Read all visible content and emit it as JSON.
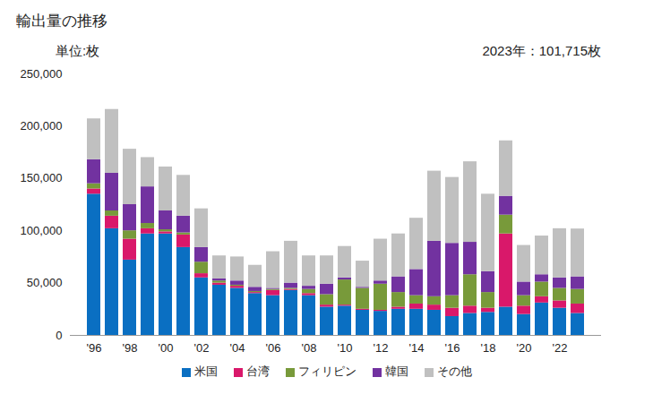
{
  "chart_data": {
    "type": "bar",
    "title": "輸出量の推移",
    "subtitle": "単位:枚",
    "annotations": [
      "2023年：101,715枚"
    ],
    "stacked": true,
    "grid": false,
    "legend": "bottom",
    "categories": [
      "'96",
      null,
      "'98",
      null,
      "'00",
      null,
      "'02",
      null,
      "'04",
      null,
      "'06",
      null,
      "'08",
      null,
      "'10",
      null,
      "'12",
      null,
      "'14",
      null,
      "'16",
      null,
      "'18",
      null,
      "'20",
      null,
      "'22",
      null
    ],
    "series": [
      {
        "name": "米国",
        "color": "#0a6fc2",
        "values": [
          135000,
          102000,
          72000,
          97000,
          97000,
          84000,
          55000,
          48000,
          45000,
          40000,
          38000,
          43000,
          38000,
          27000,
          28000,
          24000,
          23000,
          25000,
          25000,
          24000,
          18000,
          21000,
          22000,
          27000,
          20000,
          31000,
          26000,
          21000
        ]
      },
      {
        "name": "台湾",
        "color": "#d9186a",
        "values": [
          5000,
          12000,
          20000,
          5000,
          2000,
          12000,
          4000,
          2000,
          2000,
          1000,
          5000,
          1000,
          2000,
          2000,
          1000,
          1000,
          1000,
          2000,
          5000,
          5000,
          8000,
          7000,
          4000,
          70000,
          8000,
          6000,
          7000,
          9000
        ]
      },
      {
        "name": "フィリピン",
        "color": "#789a3a",
        "values": [
          5000,
          5000,
          8000,
          5000,
          2000,
          2000,
          11000,
          2000,
          1000,
          1000,
          1000,
          1000,
          4000,
          10000,
          24000,
          20000,
          25000,
          14000,
          8000,
          8000,
          12000,
          30000,
          15000,
          18000,
          10000,
          14000,
          12000,
          14000
        ]
      },
      {
        "name": "韓国",
        "color": "#7232a0",
        "values": [
          23000,
          36000,
          25000,
          35000,
          18000,
          16000,
          14000,
          2000,
          4000,
          4000,
          1000,
          5000,
          3000,
          10000,
          2000,
          1000,
          3000,
          15000,
          25000,
          53000,
          50000,
          31000,
          20000,
          18000,
          13000,
          7000,
          10000,
          12000
        ]
      },
      {
        "name": "その他",
        "color": "#c0c0c0",
        "values": [
          39000,
          61000,
          53000,
          28000,
          42000,
          39000,
          37000,
          22000,
          23000,
          21000,
          35000,
          40000,
          29000,
          27000,
          30000,
          25000,
          40000,
          41000,
          49000,
          67000,
          63000,
          77000,
          74000,
          53000,
          35000,
          37000,
          47000,
          45715
        ]
      }
    ],
    "ylim": [
      0,
      250000
    ],
    "yticks": [
      0,
      {
        "value": 50000,
        "label": "50,000"
      },
      {
        "value": 100000,
        "label": "100,000"
      },
      {
        "value": 150000,
        "label": "150,000"
      },
      {
        "value": 200000,
        "label": "200,000"
      },
      {
        "value": 250000,
        "label": "250,000"
      }
    ]
  }
}
